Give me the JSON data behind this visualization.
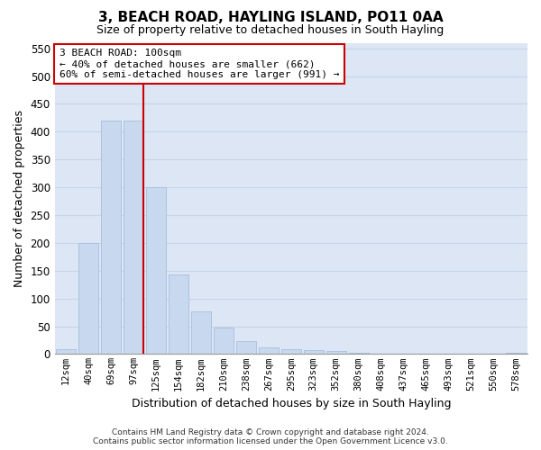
{
  "title1": "3, BEACH ROAD, HAYLING ISLAND, PO11 0AA",
  "title2": "Size of property relative to detached houses in South Hayling",
  "xlabel": "Distribution of detached houses by size in South Hayling",
  "ylabel": "Number of detached properties",
  "footnote": "Contains HM Land Registry data © Crown copyright and database right 2024.\nContains public sector information licensed under the Open Government Licence v3.0.",
  "categories": [
    "12sqm",
    "40sqm",
    "69sqm",
    "97sqm",
    "125sqm",
    "154sqm",
    "182sqm",
    "210sqm",
    "238sqm",
    "267sqm",
    "295sqm",
    "323sqm",
    "352sqm",
    "380sqm",
    "408sqm",
    "437sqm",
    "465sqm",
    "493sqm",
    "521sqm",
    "550sqm",
    "578sqm"
  ],
  "values": [
    8,
    200,
    420,
    420,
    300,
    143,
    77,
    48,
    23,
    12,
    8,
    7,
    5,
    2,
    1,
    0,
    0,
    0,
    0,
    0,
    3
  ],
  "bar_color": "#c8d8ef",
  "bar_edge_color": "#a8bedd",
  "vline_color": "#cc0000",
  "annotation_line1": "3 BEACH ROAD: 100sqm",
  "annotation_line2": "← 40% of detached houses are smaller (662)",
  "annotation_line3": "60% of semi-detached houses are larger (991) →",
  "annotation_box_color": "#ffffff",
  "annotation_box_edge": "#cc0000",
  "ylim": [
    0,
    560
  ],
  "yticks": [
    0,
    50,
    100,
    150,
    200,
    250,
    300,
    350,
    400,
    450,
    500,
    550
  ],
  "grid_color": "#c8d4e8",
  "bg_color": "#dce6f5",
  "title1_fontsize": 11,
  "title2_fontsize": 9
}
